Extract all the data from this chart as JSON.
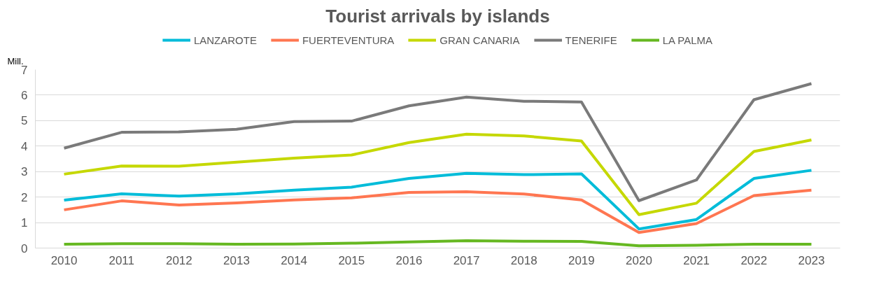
{
  "chart_data": {
    "type": "line",
    "title": "Tourist arrivals by islands",
    "ylabel": "Mill.",
    "categories": [
      "2010",
      "2011",
      "2012",
      "2013",
      "2014",
      "2015",
      "2016",
      "2017",
      "2018",
      "2019",
      "2020",
      "2021",
      "2022",
      "2023"
    ],
    "ylim": [
      0,
      7
    ],
    "yticks": [
      0,
      1,
      2,
      3,
      4,
      5,
      6,
      7
    ],
    "grid": "y",
    "legend": "top",
    "marker": "none",
    "line_style": "solid",
    "series": [
      {
        "name": "LANZAROTE",
        "color": "#00bcd9",
        "values": [
          1.88,
          2.13,
          2.04,
          2.13,
          2.27,
          2.39,
          2.73,
          2.93,
          2.88,
          2.91,
          0.75,
          1.12,
          2.73,
          3.05
        ]
      },
      {
        "name": "FUERTEVENTURA",
        "color": "#ff7651",
        "values": [
          1.5,
          1.85,
          1.69,
          1.77,
          1.89,
          1.97,
          2.18,
          2.21,
          2.12,
          1.89,
          0.61,
          0.96,
          2.06,
          2.27
        ]
      },
      {
        "name": "GRAN CANARIA",
        "color": "#c5d800",
        "values": [
          2.9,
          3.22,
          3.21,
          3.37,
          3.53,
          3.65,
          4.14,
          4.47,
          4.4,
          4.2,
          1.31,
          1.76,
          3.79,
          4.24
        ]
      },
      {
        "name": "TENERIFE",
        "color": "#7a7a7a",
        "values": [
          3.92,
          4.54,
          4.56,
          4.66,
          4.96,
          4.98,
          5.58,
          5.92,
          5.76,
          5.73,
          1.86,
          2.67,
          5.82,
          6.45
        ]
      },
      {
        "name": "LA PALMA",
        "color": "#66b821",
        "values": [
          0.15,
          0.17,
          0.17,
          0.15,
          0.16,
          0.19,
          0.24,
          0.29,
          0.27,
          0.26,
          0.09,
          0.11,
          0.15,
          0.15
        ]
      }
    ]
  }
}
